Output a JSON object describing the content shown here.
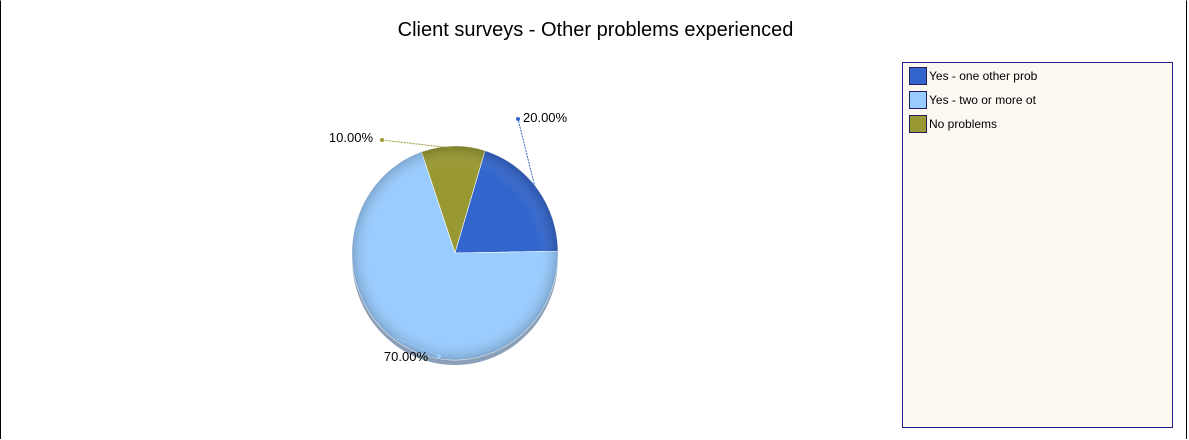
{
  "chart_data": {
    "type": "pie",
    "title": "Client surveys - Other problems experienced",
    "categories": [
      "Yes - one other prob",
      "Yes - two or more ot",
      "No  problems"
    ],
    "values": [
      20.0,
      70.0,
      10.0
    ],
    "data_labels": [
      "20.00%",
      "70.00%",
      "10.00%"
    ],
    "colors": [
      "#3366cc",
      "#99ccff",
      "#999933"
    ],
    "legend_position": "right"
  }
}
